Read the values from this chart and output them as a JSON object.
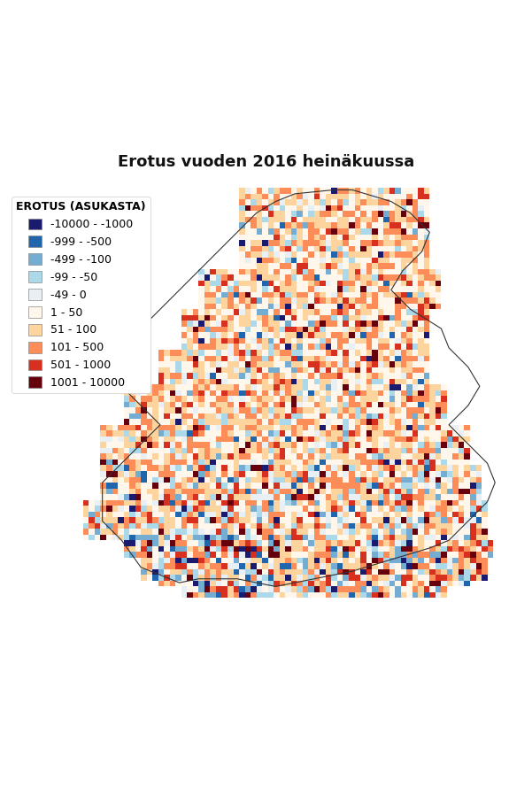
{
  "title": "Erotus vuoden 2016 heinäkuussa",
  "legend_title": "EROTUS (ASUKASTA)",
  "legend_labels": [
    "-10000 - -1000",
    "-999 - -500",
    "-499 - -100",
    "-99 - -50",
    "-49 - 0",
    "1 - 50",
    "51 - 100",
    "101 - 500",
    "501 - 1000",
    "1001 - 10000"
  ],
  "legend_colors": [
    "#1a1a6e",
    "#2166ac",
    "#74add1",
    "#abd9e9",
    "#e8f0f5",
    "#fff7ec",
    "#fdd49e",
    "#fc8d59",
    "#d7301f",
    "#67000d"
  ],
  "background_color": "#ffffff",
  "map_background": "#ffffff",
  "border_color": "#333333",
  "title_fontsize": 13,
  "legend_fontsize": 9
}
